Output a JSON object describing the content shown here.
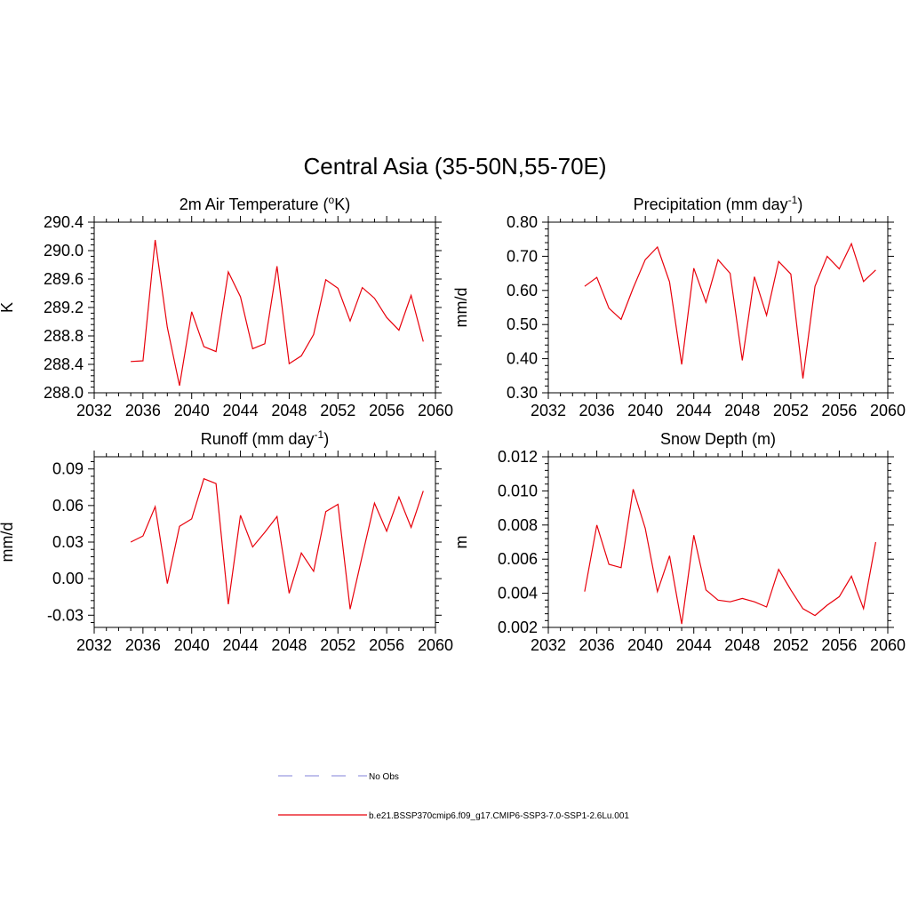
{
  "figure": {
    "title": "Central Asia (35-50N,55-70E)"
  },
  "legend": {
    "placement": "bottom-center",
    "items": [
      {
        "label": "No Obs",
        "color": "#9a9ae0",
        "style": "dashed"
      },
      {
        "label": "b.e21.BSSP370cmip6.f09_g17.CMIP6-SSP3-7.0-SSP1-2.6Lu.001",
        "color": "#e8000b",
        "style": "solid"
      }
    ]
  },
  "chart_data": [
    {
      "type": "line",
      "title": "2m Air Temperature (",
      "title_sup": "o",
      "title_after": "K)",
      "ylabel": "K",
      "xlim": [
        2032,
        2060
      ],
      "xticks": [
        "2032",
        "2036",
        "2040",
        "2044",
        "2048",
        "2052",
        "2056",
        "2060"
      ],
      "ylim": [
        288.0,
        290.4
      ],
      "yticks": [
        "288.0",
        "288.4",
        "288.8",
        "289.2",
        "289.6",
        "290.0",
        "290.4"
      ],
      "grid": false,
      "series": [
        {
          "color": "#e8000b",
          "x": [
            2035,
            2036,
            2037,
            2038,
            2039,
            2040,
            2041,
            2042,
            2043,
            2044,
            2045,
            2046,
            2047,
            2048,
            2049,
            2050,
            2051,
            2052,
            2053,
            2054,
            2055,
            2056,
            2057,
            2058,
            2059
          ],
          "y": [
            288.44,
            288.45,
            290.15,
            288.92,
            288.1,
            289.14,
            288.65,
            288.58,
            289.7,
            289.35,
            288.62,
            288.69,
            289.78,
            288.41,
            288.52,
            288.82,
            289.59,
            289.47,
            289.01,
            289.48,
            289.33,
            289.06,
            288.88,
            289.37,
            288.72
          ]
        }
      ]
    },
    {
      "type": "line",
      "title": "Precipitation (mm day",
      "title_sup": "-1",
      "title_after": ")",
      "ylabel": "mm/d",
      "xlim": [
        2032,
        2060
      ],
      "xticks": [
        "2032",
        "2036",
        "2040",
        "2044",
        "2048",
        "2052",
        "2056",
        "2060"
      ],
      "ylim": [
        0.3,
        0.8
      ],
      "yticks": [
        "0.30",
        "0.40",
        "0.50",
        "0.60",
        "0.70",
        "0.80"
      ],
      "grid": false,
      "series": [
        {
          "color": "#e8000b",
          "x": [
            2035,
            2036,
            2037,
            2038,
            2039,
            2040,
            2041,
            2042,
            2043,
            2044,
            2045,
            2046,
            2047,
            2048,
            2049,
            2050,
            2051,
            2052,
            2053,
            2054,
            2055,
            2056,
            2057,
            2058,
            2059
          ],
          "y": [
            0.612,
            0.638,
            0.548,
            0.515,
            0.607,
            0.69,
            0.727,
            0.625,
            0.383,
            0.665,
            0.565,
            0.69,
            0.65,
            0.395,
            0.64,
            0.527,
            0.685,
            0.648,
            0.342,
            0.612,
            0.7,
            0.663,
            0.737,
            0.626,
            0.66
          ]
        }
      ]
    },
    {
      "type": "line",
      "title": "Runoff (mm day",
      "title_sup": "-1",
      "title_after": ")",
      "ylabel": "mm/d",
      "xlim": [
        2032,
        2060
      ],
      "xticks": [
        "2032",
        "2036",
        "2040",
        "2044",
        "2048",
        "2052",
        "2056",
        "2060"
      ],
      "ylim": [
        -0.04,
        0.1
      ],
      "yticks": [
        "-0.03",
        "0.00",
        "0.03",
        "0.06",
        "0.09"
      ],
      "ytick_values": [
        -0.03,
        0.0,
        0.03,
        0.06,
        0.09
      ],
      "grid": false,
      "series": [
        {
          "color": "#e8000b",
          "x": [
            2035,
            2036,
            2037,
            2038,
            2039,
            2040,
            2041,
            2042,
            2043,
            2044,
            2045,
            2046,
            2047,
            2048,
            2049,
            2050,
            2051,
            2052,
            2053,
            2054,
            2055,
            2056,
            2057,
            2058,
            2059
          ],
          "y": [
            0.03,
            0.035,
            0.059,
            -0.004,
            0.043,
            0.049,
            0.082,
            0.078,
            -0.021,
            0.052,
            0.026,
            0.038,
            0.051,
            -0.012,
            0.021,
            0.006,
            0.055,
            0.061,
            -0.025,
            0.019,
            0.062,
            0.039,
            0.067,
            0.042,
            0.072
          ]
        }
      ]
    },
    {
      "type": "line",
      "title": "Snow Depth (m)",
      "title_sup": "",
      "title_after": "",
      "ylabel": "m",
      "xlim": [
        2032,
        2060
      ],
      "xticks": [
        "2032",
        "2036",
        "2040",
        "2044",
        "2048",
        "2052",
        "2056",
        "2060"
      ],
      "ylim": [
        0.002,
        0.012
      ],
      "yticks": [
        "0.002",
        "0.004",
        "0.006",
        "0.008",
        "0.010",
        "0.012"
      ],
      "grid": false,
      "series": [
        {
          "color": "#e8000b",
          "x": [
            2035,
            2036,
            2037,
            2038,
            2039,
            2040,
            2041,
            2042,
            2043,
            2044,
            2045,
            2046,
            2047,
            2048,
            2049,
            2050,
            2051,
            2052,
            2053,
            2054,
            2055,
            2056,
            2057,
            2058,
            2059
          ],
          "y": [
            0.0041,
            0.008,
            0.0057,
            0.0055,
            0.0101,
            0.0078,
            0.0041,
            0.0062,
            0.0022,
            0.0074,
            0.0042,
            0.0036,
            0.0035,
            0.0037,
            0.0035,
            0.0032,
            0.0054,
            0.0042,
            0.0031,
            0.0027,
            0.0033,
            0.0038,
            0.005,
            0.0031,
            0.007
          ]
        }
      ]
    }
  ]
}
